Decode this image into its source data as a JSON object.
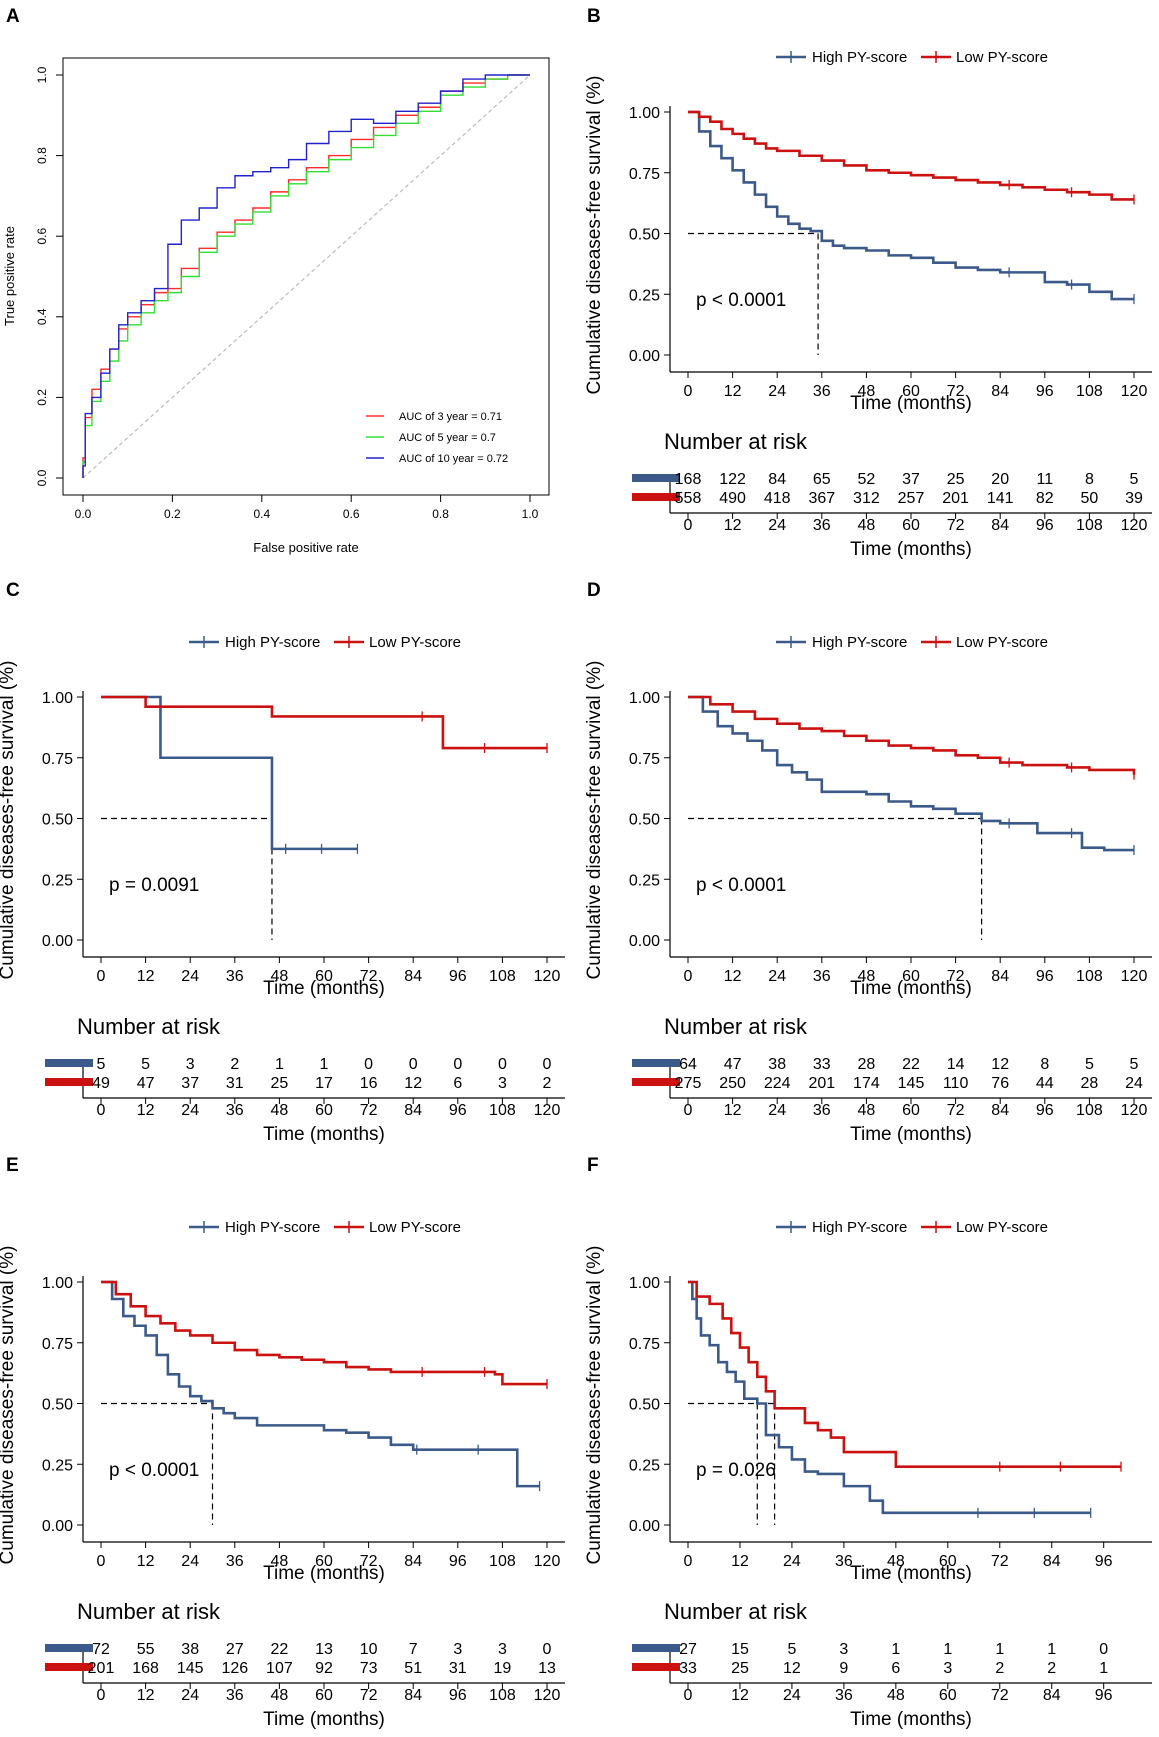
{
  "panel_letters": [
    "A",
    "B",
    "C",
    "D",
    "E",
    "F"
  ],
  "colors": {
    "high": "#3b5a8a",
    "low": "#cc1111",
    "roc3": "#ff2a2a",
    "roc5": "#33dd33",
    "roc10": "#2222cc",
    "diag": "#bbbbbb"
  },
  "chart_data": [
    {
      "type": "line",
      "panel": "A",
      "title": "",
      "xlabel": "False positive rate",
      "ylabel": "True positive rate",
      "xlim": [
        0,
        1
      ],
      "ylim": [
        0,
        1
      ],
      "ticks": [
        "0.0",
        "0.2",
        "0.4",
        "0.6",
        "0.8",
        "1.0"
      ],
      "series": [
        {
          "name": "AUC of 3 year = 0.71",
          "color": "roc3",
          "x": [
            0,
            0.005,
            0.02,
            0.04,
            0.06,
            0.08,
            0.1,
            0.13,
            0.16,
            0.19,
            0.22,
            0.26,
            0.3,
            0.34,
            0.38,
            0.42,
            0.46,
            0.5,
            0.55,
            0.6,
            0.65,
            0.7,
            0.75,
            0.8,
            0.85,
            0.9,
            0.95,
            1.0
          ],
          "y": [
            0,
            0.05,
            0.15,
            0.22,
            0.27,
            0.32,
            0.37,
            0.4,
            0.43,
            0.46,
            0.47,
            0.52,
            0.57,
            0.61,
            0.64,
            0.67,
            0.71,
            0.74,
            0.77,
            0.8,
            0.84,
            0.87,
            0.9,
            0.92,
            0.96,
            0.98,
            0.99,
            1.0
          ]
        },
        {
          "name": "AUC of 5 year = 0.7",
          "color": "roc5",
          "x": [
            0,
            0.005,
            0.02,
            0.04,
            0.06,
            0.08,
            0.1,
            0.13,
            0.16,
            0.19,
            0.22,
            0.26,
            0.3,
            0.34,
            0.38,
            0.42,
            0.46,
            0.5,
            0.55,
            0.6,
            0.65,
            0.7,
            0.75,
            0.8,
            0.85,
            0.9,
            0.95,
            1.0
          ],
          "y": [
            0,
            0.04,
            0.13,
            0.19,
            0.24,
            0.29,
            0.34,
            0.38,
            0.41,
            0.44,
            0.46,
            0.5,
            0.56,
            0.6,
            0.63,
            0.66,
            0.7,
            0.73,
            0.76,
            0.79,
            0.82,
            0.85,
            0.88,
            0.91,
            0.95,
            0.97,
            0.99,
            1.0
          ]
        },
        {
          "name": "AUC of 10 year = 0.72",
          "color": "roc10",
          "x": [
            0,
            0.005,
            0.02,
            0.04,
            0.06,
            0.08,
            0.1,
            0.13,
            0.16,
            0.19,
            0.22,
            0.26,
            0.3,
            0.34,
            0.38,
            0.42,
            0.46,
            0.5,
            0.55,
            0.6,
            0.65,
            0.7,
            0.75,
            0.8,
            0.85,
            0.9,
            0.95,
            1.0
          ],
          "y": [
            0,
            0.03,
            0.16,
            0.2,
            0.26,
            0.32,
            0.38,
            0.41,
            0.44,
            0.47,
            0.58,
            0.64,
            0.67,
            0.72,
            0.75,
            0.76,
            0.77,
            0.79,
            0.83,
            0.86,
            0.89,
            0.88,
            0.91,
            0.93,
            0.96,
            0.99,
            1.0,
            1.0
          ]
        }
      ]
    },
    {
      "type": "line",
      "panel": "B",
      "xlabel": "Time (months)",
      "ylabel": "Cumulative diseases-free survival (%)",
      "xlim": [
        0,
        120
      ],
      "ylim": [
        0,
        1
      ],
      "xticks": [
        0,
        12,
        24,
        36,
        48,
        60,
        72,
        84,
        96,
        108,
        120
      ],
      "yticks": [
        "0.00",
        "0.25",
        "0.50",
        "0.75",
        "1.00"
      ],
      "legend": [
        "High PY-score",
        "Low PY-score"
      ],
      "pvalue": "p < 0.0001",
      "median_lines": [
        35
      ],
      "series": [
        {
          "name": "High PY-score",
          "color": "high",
          "x": [
            0,
            3,
            6,
            9,
            12,
            15,
            18,
            21,
            24,
            27,
            30,
            33,
            36,
            39,
            42,
            48,
            54,
            60,
            66,
            72,
            78,
            84,
            90,
            96,
            102,
            108,
            114,
            120
          ],
          "y": [
            1.0,
            0.92,
            0.86,
            0.81,
            0.76,
            0.71,
            0.66,
            0.61,
            0.57,
            0.54,
            0.52,
            0.51,
            0.47,
            0.45,
            0.44,
            0.43,
            0.41,
            0.4,
            0.38,
            0.36,
            0.35,
            0.34,
            0.34,
            0.3,
            0.29,
            0.26,
            0.23,
            0.23
          ]
        },
        {
          "name": "Low PY-score",
          "color": "low",
          "x": [
            0,
            3,
            6,
            9,
            12,
            15,
            18,
            21,
            24,
            30,
            36,
            42,
            48,
            54,
            60,
            66,
            72,
            78,
            84,
            90,
            96,
            102,
            108,
            114,
            120
          ],
          "y": [
            1.0,
            0.98,
            0.96,
            0.93,
            0.91,
            0.89,
            0.87,
            0.85,
            0.84,
            0.82,
            0.8,
            0.78,
            0.76,
            0.75,
            0.74,
            0.73,
            0.72,
            0.71,
            0.7,
            0.69,
            0.68,
            0.67,
            0.66,
            0.64,
            0.64
          ]
        }
      ],
      "risk_table": {
        "title": "Number at risk",
        "high": [
          "168",
          "122",
          "84",
          "65",
          "52",
          "37",
          "25",
          "20",
          "11",
          "8",
          "5"
        ],
        "low": [
          "558",
          "490",
          "418",
          "367",
          "312",
          "257",
          "201",
          "141",
          "82",
          "50",
          "39"
        ]
      }
    },
    {
      "type": "line",
      "panel": "C",
      "xlabel": "Time (months)",
      "ylabel": "Cumulative diseases-free survival (%)",
      "xlim": [
        0,
        120
      ],
      "ylim": [
        0,
        1
      ],
      "xticks": [
        0,
        12,
        24,
        36,
        48,
        60,
        72,
        84,
        96,
        108,
        120
      ],
      "yticks": [
        "0.00",
        "0.25",
        "0.50",
        "0.75",
        "1.00"
      ],
      "legend": [
        "High PY-score",
        "Low PY-score"
      ],
      "pvalue": "p = 0.0091",
      "median_lines": [
        46
      ],
      "series": [
        {
          "name": "High PY-score",
          "color": "high",
          "x": [
            0,
            16,
            16,
            46,
            46,
            69
          ],
          "y": [
            1.0,
            1.0,
            0.75,
            0.75,
            0.375,
            0.375
          ]
        },
        {
          "name": "Low PY-score",
          "color": "low",
          "x": [
            0,
            12,
            12,
            46,
            46,
            92,
            92,
            120
          ],
          "y": [
            1.0,
            1.0,
            0.96,
            0.96,
            0.92,
            0.92,
            0.79,
            0.79
          ]
        }
      ],
      "risk_table": {
        "title": "Number at risk",
        "high": [
          "5",
          "5",
          "3",
          "2",
          "1",
          "1",
          "0",
          "0",
          "0",
          "0",
          "0"
        ],
        "low": [
          "49",
          "47",
          "37",
          "31",
          "25",
          "17",
          "16",
          "12",
          "6",
          "3",
          "2"
        ]
      }
    },
    {
      "type": "line",
      "panel": "D",
      "xlabel": "Time (months)",
      "ylabel": "Cumulative diseases-free survival (%)",
      "xlim": [
        0,
        120
      ],
      "ylim": [
        0,
        1
      ],
      "xticks": [
        0,
        12,
        24,
        36,
        48,
        60,
        72,
        84,
        96,
        108,
        120
      ],
      "yticks": [
        "0.00",
        "0.25",
        "0.50",
        "0.75",
        "1.00"
      ],
      "legend": [
        "High PY-score",
        "Low PY-score"
      ],
      "pvalue": "p < 0.0001",
      "median_lines": [
        79
      ],
      "series": [
        {
          "name": "High PY-score",
          "color": "high",
          "x": [
            0,
            4,
            8,
            12,
            16,
            20,
            24,
            28,
            32,
            36,
            48,
            54,
            60,
            66,
            72,
            79,
            84,
            90,
            94,
            100,
            106,
            112,
            120
          ],
          "y": [
            1.0,
            0.94,
            0.88,
            0.85,
            0.82,
            0.78,
            0.72,
            0.69,
            0.66,
            0.61,
            0.6,
            0.57,
            0.55,
            0.54,
            0.52,
            0.49,
            0.48,
            0.48,
            0.44,
            0.44,
            0.38,
            0.37,
            0.37
          ]
        },
        {
          "name": "Low PY-score",
          "color": "low",
          "x": [
            0,
            6,
            12,
            18,
            24,
            30,
            36,
            42,
            48,
            54,
            60,
            66,
            72,
            78,
            84,
            90,
            96,
            102,
            108,
            114,
            120
          ],
          "y": [
            1.0,
            0.97,
            0.94,
            0.91,
            0.89,
            0.87,
            0.86,
            0.84,
            0.82,
            0.8,
            0.79,
            0.78,
            0.76,
            0.75,
            0.73,
            0.72,
            0.72,
            0.71,
            0.7,
            0.7,
            0.68
          ]
        }
      ],
      "risk_table": {
        "title": "Number at risk",
        "high": [
          "64",
          "47",
          "38",
          "33",
          "28",
          "22",
          "14",
          "12",
          "8",
          "5",
          "5"
        ],
        "low": [
          "275",
          "250",
          "224",
          "201",
          "174",
          "145",
          "110",
          "76",
          "44",
          "28",
          "24"
        ]
      }
    },
    {
      "type": "line",
      "panel": "E",
      "xlabel": "Time (months)",
      "ylabel": "Cumulative diseases-free survival (%)",
      "xlim": [
        0,
        120
      ],
      "ylim": [
        0,
        1
      ],
      "xticks": [
        0,
        12,
        24,
        36,
        48,
        60,
        72,
        84,
        96,
        108,
        120
      ],
      "yticks": [
        "0.00",
        "0.25",
        "0.50",
        "0.75",
        "1.00"
      ],
      "legend": [
        "High PY-score",
        "Low PY-score"
      ],
      "pvalue": "p < 0.0001",
      "median_lines": [
        30
      ],
      "series": [
        {
          "name": "High PY-score",
          "color": "high",
          "x": [
            0,
            3,
            6,
            9,
            12,
            15,
            18,
            21,
            24,
            27,
            30,
            33,
            36,
            42,
            48,
            54,
            60,
            66,
            72,
            78,
            84,
            90,
            96,
            102,
            108,
            112,
            112,
            118
          ],
          "y": [
            1.0,
            0.93,
            0.86,
            0.82,
            0.78,
            0.7,
            0.62,
            0.57,
            0.53,
            0.51,
            0.48,
            0.46,
            0.44,
            0.41,
            0.41,
            0.41,
            0.39,
            0.38,
            0.36,
            0.33,
            0.31,
            0.31,
            0.31,
            0.31,
            0.31,
            0.31,
            0.16,
            0.16
          ]
        },
        {
          "name": "Low PY-score",
          "color": "low",
          "x": [
            0,
            4,
            8,
            12,
            16,
            20,
            24,
            30,
            36,
            42,
            48,
            54,
            60,
            66,
            72,
            78,
            84,
            90,
            96,
            102,
            106,
            108,
            114,
            120
          ],
          "y": [
            1.0,
            0.95,
            0.9,
            0.86,
            0.83,
            0.8,
            0.78,
            0.75,
            0.72,
            0.7,
            0.69,
            0.68,
            0.67,
            0.65,
            0.64,
            0.63,
            0.63,
            0.63,
            0.63,
            0.63,
            0.62,
            0.58,
            0.58,
            0.58
          ]
        }
      ],
      "risk_table": {
        "title": "Number at risk",
        "high": [
          "72",
          "55",
          "38",
          "27",
          "22",
          "13",
          "10",
          "7",
          "3",
          "3",
          "0"
        ],
        "low": [
          "201",
          "168",
          "145",
          "126",
          "107",
          "92",
          "73",
          "51",
          "31",
          "19",
          "13"
        ]
      }
    },
    {
      "type": "line",
      "panel": "F",
      "xlabel": "Time (months)",
      "ylabel": "Cumulative diseases-free survival (%)",
      "xlim": [
        0,
        103
      ],
      "ylim": [
        0,
        1
      ],
      "xticks": [
        0,
        12,
        24,
        36,
        48,
        60,
        72,
        84,
        96
      ],
      "yticks": [
        "0.00",
        "0.25",
        "0.50",
        "0.75",
        "1.00"
      ],
      "legend": [
        "High PY-score",
        "Low PY-score"
      ],
      "pvalue": "p = 0.026",
      "median_lines": [
        16,
        20
      ],
      "series": [
        {
          "name": "High PY-score",
          "color": "high",
          "x": [
            0,
            1,
            2,
            3,
            5,
            7,
            9,
            11,
            13,
            16,
            18,
            21,
            24,
            27,
            30,
            36,
            42,
            45,
            93
          ],
          "y": [
            1.0,
            0.93,
            0.85,
            0.78,
            0.74,
            0.67,
            0.63,
            0.59,
            0.52,
            0.5,
            0.37,
            0.32,
            0.27,
            0.22,
            0.21,
            0.16,
            0.1,
            0.05,
            0.05
          ]
        },
        {
          "name": "Low PY-score",
          "color": "low",
          "x": [
            0,
            2,
            5,
            8,
            10,
            12,
            14,
            16,
            18,
            20,
            24,
            27,
            30,
            33,
            36,
            42,
            48,
            60,
            72,
            84,
            96,
            100
          ],
          "y": [
            1.0,
            0.94,
            0.91,
            0.85,
            0.79,
            0.73,
            0.67,
            0.61,
            0.55,
            0.48,
            0.48,
            0.42,
            0.39,
            0.36,
            0.3,
            0.3,
            0.24,
            0.24,
            0.24,
            0.24,
            0.24,
            0.24
          ]
        }
      ],
      "risk_table": {
        "title": "Number at risk",
        "high": [
          "27",
          "15",
          "5",
          "3",
          "1",
          "1",
          "1",
          "1",
          "0"
        ],
        "low": [
          "33",
          "25",
          "12",
          "9",
          "6",
          "3",
          "2",
          "2",
          "1"
        ]
      }
    }
  ]
}
